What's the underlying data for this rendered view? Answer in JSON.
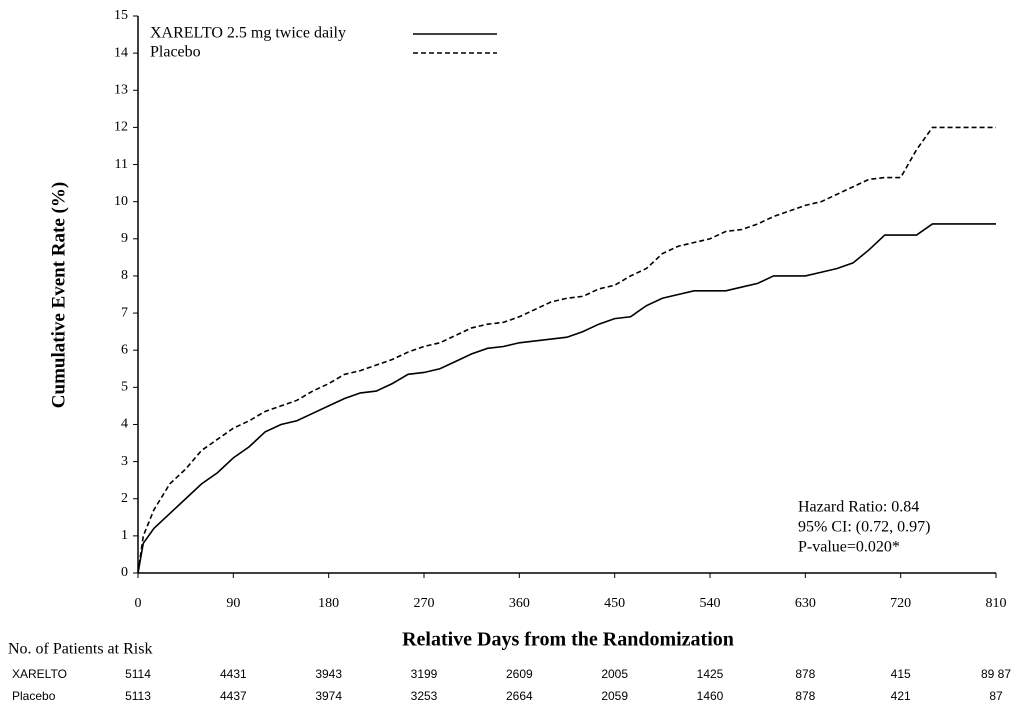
{
  "chart_data": {
    "type": "line",
    "x_label": "Relative Days from the Randomization",
    "y_label": "Cumulative Event Rate (%)",
    "xlim": [
      0,
      810
    ],
    "xticks": [
      0,
      90,
      180,
      270,
      360,
      450,
      540,
      630,
      720,
      810
    ],
    "ylim": [
      0,
      15
    ],
    "yticks": [
      0,
      1,
      2,
      3,
      4,
      5,
      6,
      7,
      8,
      9,
      10,
      11,
      12,
      13,
      14,
      15
    ],
    "x": [
      0,
      5,
      15,
      30,
      45,
      60,
      75,
      90,
      105,
      120,
      135,
      150,
      165,
      180,
      195,
      210,
      225,
      240,
      255,
      270,
      285,
      300,
      315,
      330,
      345,
      360,
      375,
      390,
      405,
      420,
      435,
      450,
      465,
      480,
      495,
      510,
      525,
      540,
      555,
      570,
      585,
      600,
      615,
      630,
      645,
      660,
      675,
      690,
      705,
      720,
      735,
      750,
      765,
      810
    ],
    "series": [
      {
        "name": "XARELTO 2.5 mg twice daily",
        "color": "#000000",
        "dash": "solid",
        "values": [
          0,
          0.8,
          1.2,
          1.6,
          2.0,
          2.4,
          2.7,
          3.1,
          3.4,
          3.8,
          4.0,
          4.1,
          4.3,
          4.5,
          4.7,
          4.85,
          4.9,
          5.1,
          5.35,
          5.4,
          5.5,
          5.7,
          5.9,
          6.05,
          6.1,
          6.2,
          6.25,
          6.3,
          6.35,
          6.5,
          6.7,
          6.85,
          6.9,
          7.2,
          7.4,
          7.5,
          7.6,
          7.6,
          7.6,
          7.7,
          7.8,
          8.0,
          8.0,
          8.0,
          8.1,
          8.2,
          8.35,
          8.7,
          9.1,
          9.1,
          9.1,
          9.4,
          9.4,
          9.4
        ]
      },
      {
        "name": "Placebo",
        "color": "#000000",
        "dash": "dashed",
        "values": [
          0,
          1.0,
          1.7,
          2.4,
          2.8,
          3.3,
          3.6,
          3.9,
          4.1,
          4.35,
          4.5,
          4.65,
          4.9,
          5.1,
          5.35,
          5.45,
          5.6,
          5.75,
          5.95,
          6.1,
          6.2,
          6.4,
          6.6,
          6.7,
          6.75,
          6.9,
          7.1,
          7.3,
          7.4,
          7.45,
          7.65,
          7.75,
          8.0,
          8.2,
          8.6,
          8.8,
          8.9,
          9.0,
          9.2,
          9.25,
          9.4,
          9.6,
          9.75,
          9.9,
          10.0,
          10.2,
          10.4,
          10.6,
          10.65,
          10.65,
          11.4,
          12.0,
          12.0,
          12.0
        ]
      }
    ],
    "annotations": [
      "Hazard Ratio: 0.84",
      "95% CI:  (0.72, 0.97)",
      "P-value=0.020*"
    ],
    "at_risk": {
      "title": "No. of Patients at Risk",
      "rows": [
        {
          "name": "XARELTO",
          "values": [
            5114,
            4431,
            3943,
            3199,
            2609,
            2005,
            1425,
            878,
            415,
            "89 87"
          ]
        },
        {
          "name": "Placebo",
          "values": [
            5113,
            4437,
            3974,
            3253,
            2664,
            2059,
            1460,
            878,
            421,
            87
          ]
        }
      ]
    }
  }
}
